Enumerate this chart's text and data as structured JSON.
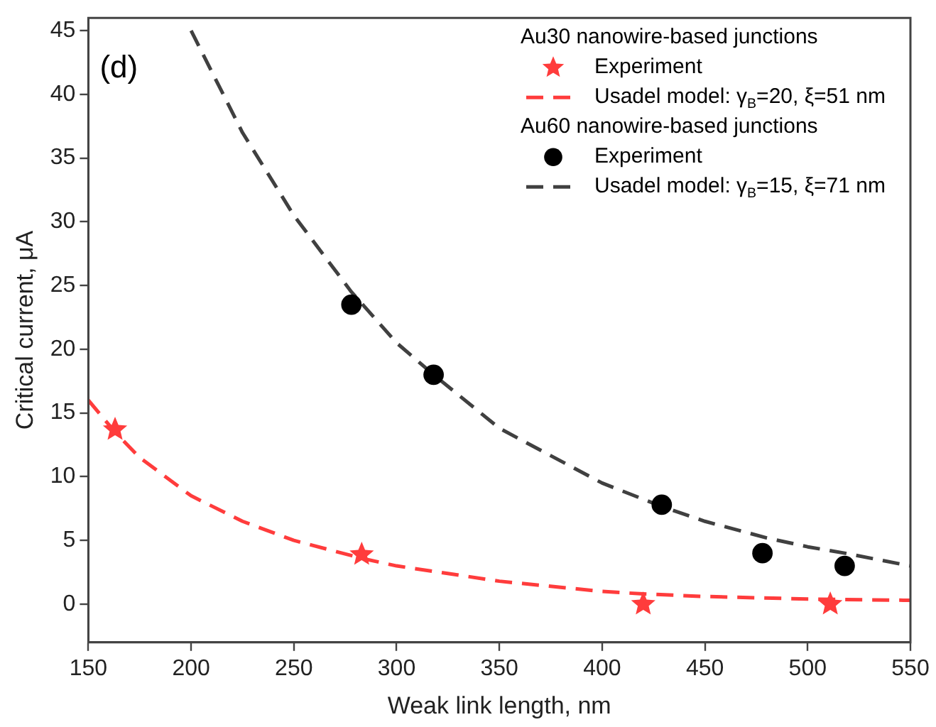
{
  "chart_data": {
    "type": "scatter",
    "xlabel": "Weak link length, nm",
    "ylabel": "Critical current, μA",
    "xlim": [
      150,
      550
    ],
    "xticks": [
      150,
      200,
      250,
      300,
      350,
      400,
      450,
      500,
      550
    ],
    "ylim": [
      -3,
      46
    ],
    "yticks": [
      0,
      5,
      10,
      15,
      20,
      25,
      30,
      35,
      40,
      45
    ],
    "grid": false,
    "legend": "top right",
    "annotations": [
      "(d)",
      "Au30 nanowire-based junctions",
      "Au60 nanowire-based junctions"
    ],
    "series": [
      {
        "name": "Experiment",
        "marker": "star",
        "color": "#ff3c3c",
        "x": [
          163,
          283,
          420,
          511
        ],
        "values": [
          13.7,
          3.9,
          0,
          0
        ]
      },
      {
        "name": "Usadel model: γ$_{B}$=20, ξ=51 nm",
        "type": "line",
        "line_style": "dashed",
        "marker": "none",
        "color": "#ff3c3c",
        "x": [
          150,
          163,
          175,
          200,
          225,
          250,
          283,
          300,
          350,
          400,
          420,
          450,
          500,
          550
        ],
        "values": [
          16,
          13.5,
          11.5,
          8.5,
          6.5,
          5,
          3.6,
          3,
          1.8,
          1,
          0.8,
          0.6,
          0.4,
          0.3
        ]
      },
      {
        "name": "Experiment",
        "marker": "circle",
        "color": "#000000",
        "x": [
          278,
          318,
          429,
          478,
          518
        ],
        "values": [
          23.5,
          18,
          7.8,
          4,
          3
        ]
      },
      {
        "name": "Usadel model: γ$_{B}$=15, ξ=71 nm",
        "type": "line",
        "line_style": "dashed",
        "marker": "none",
        "color": "#404040",
        "x": [
          200,
          225,
          250,
          278,
          300,
          318,
          350,
          400,
          430,
          450,
          480,
          500,
          518,
          550
        ],
        "values": [
          45,
          37,
          30.5,
          24.5,
          20.5,
          18,
          13.8,
          9.5,
          7.6,
          6.5,
          5.2,
          4.5,
          4,
          3
        ]
      }
    ]
  }
}
